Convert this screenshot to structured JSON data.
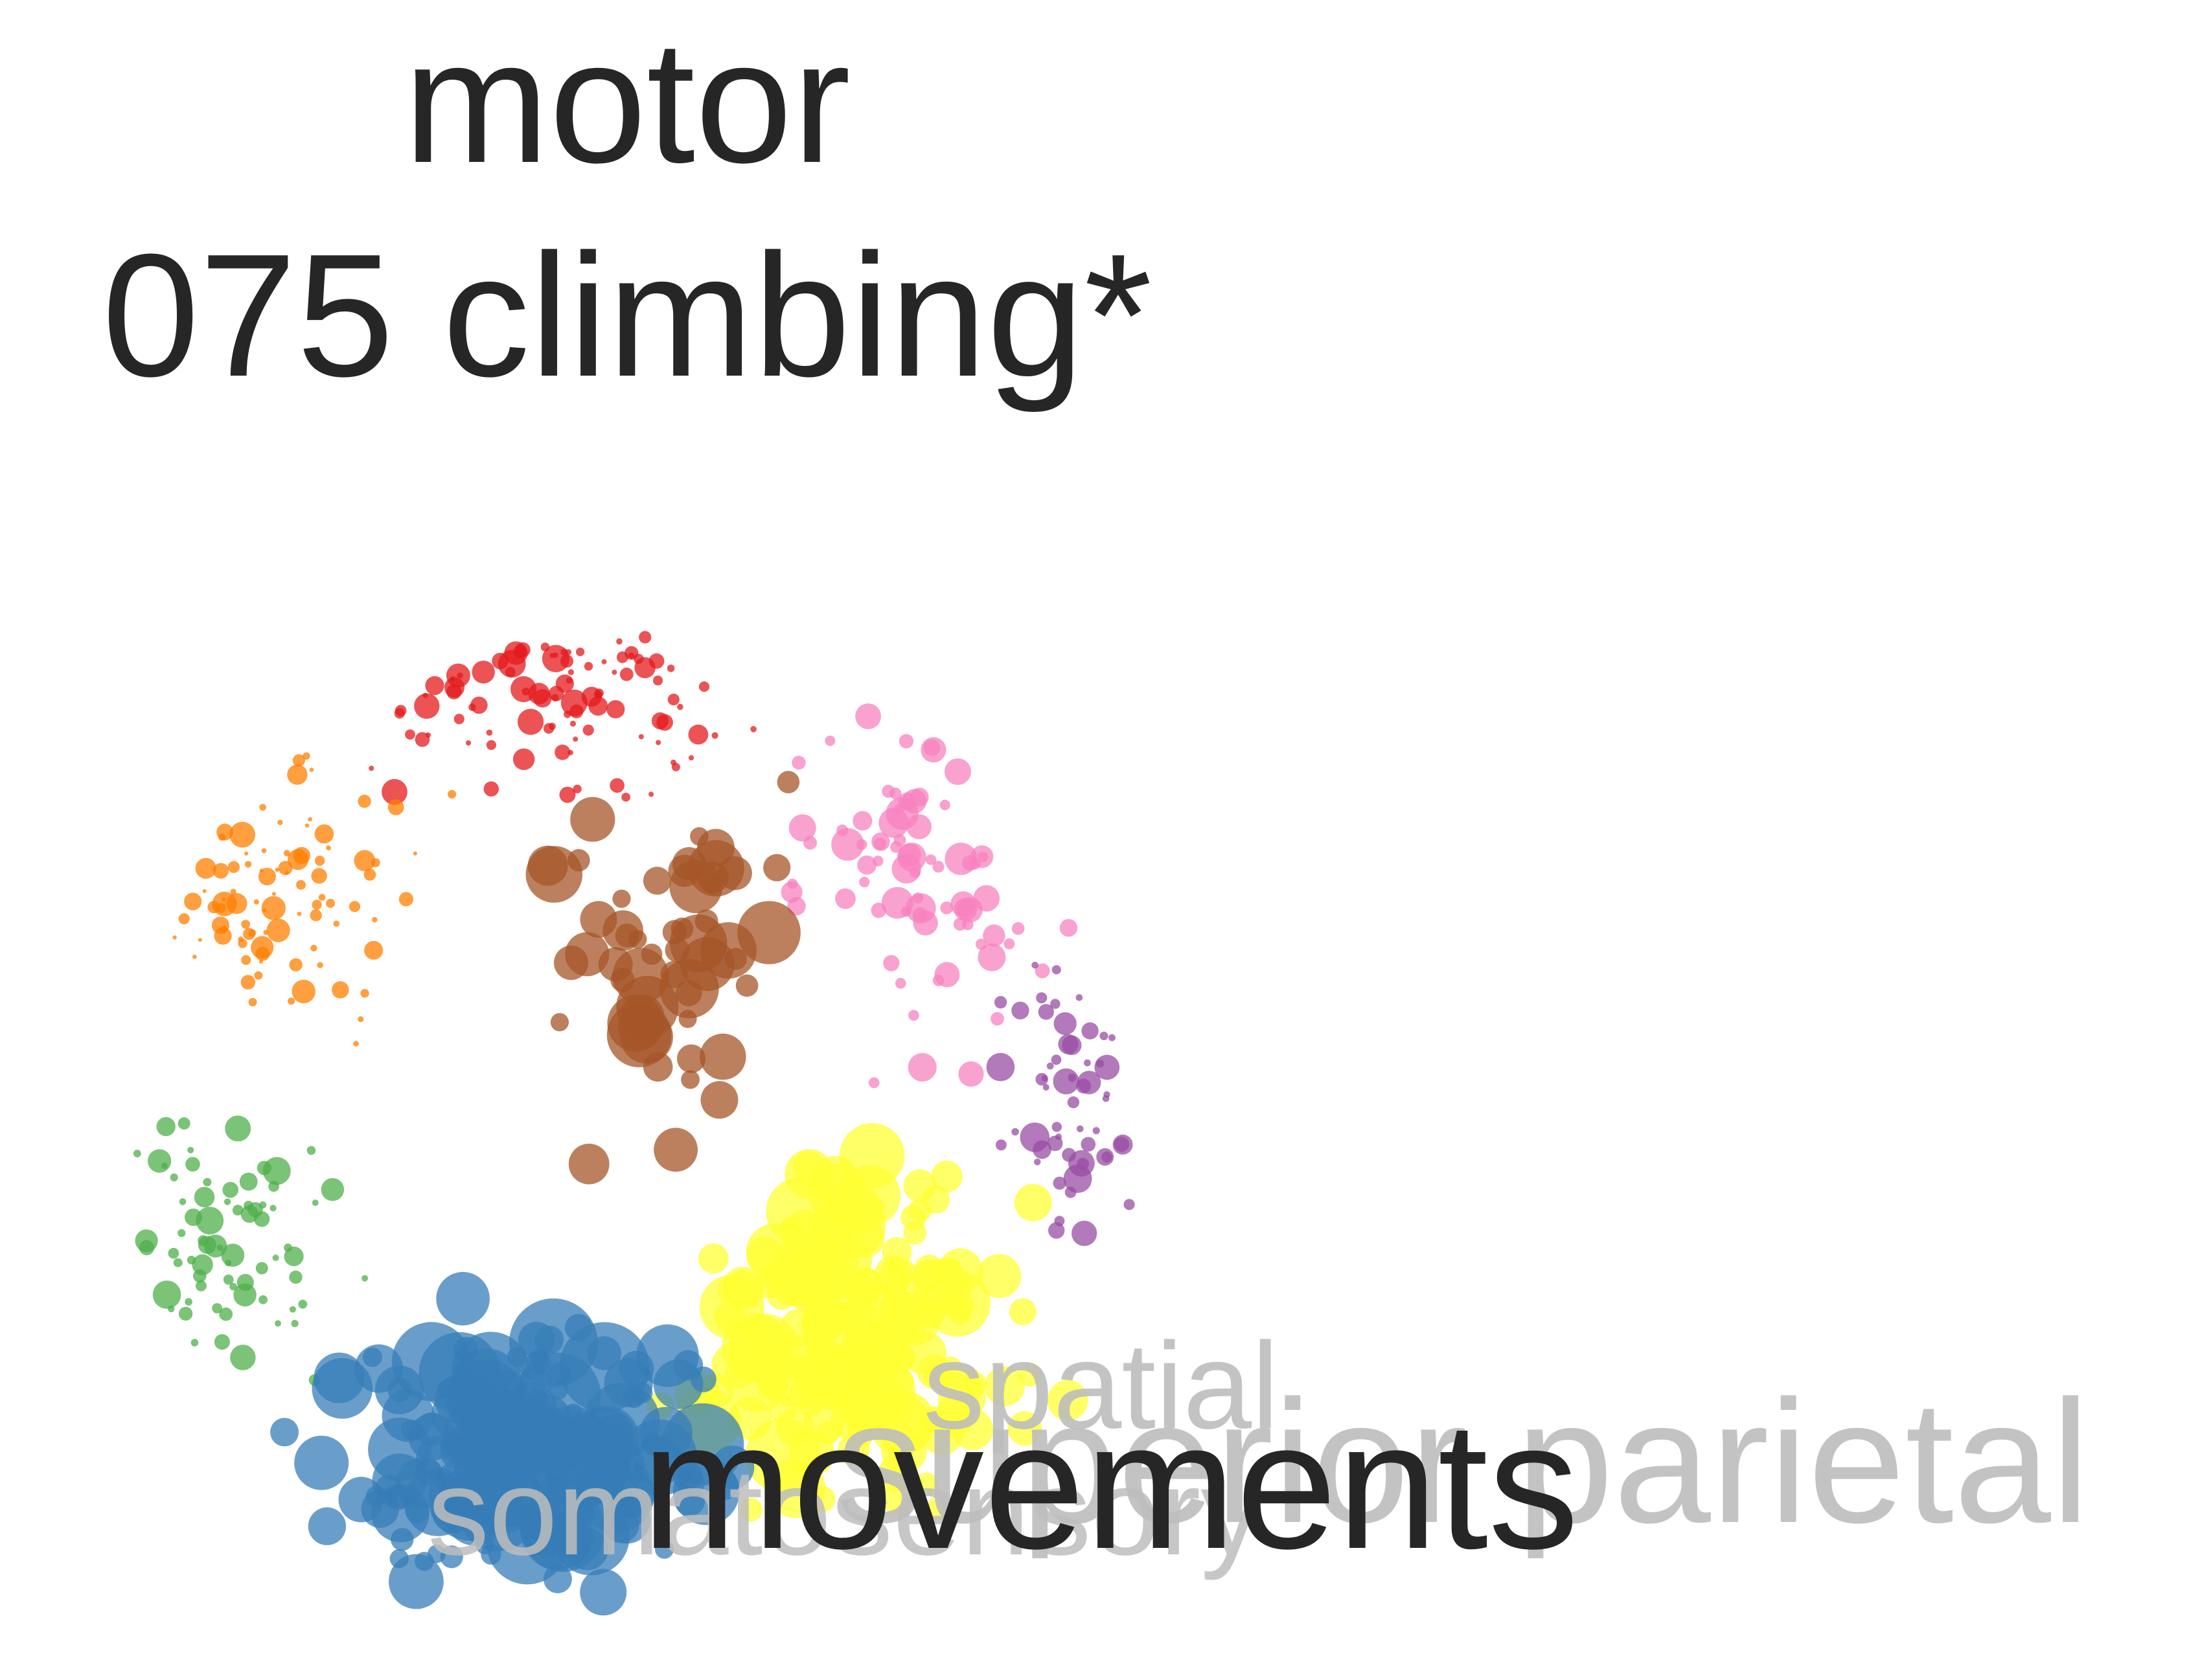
{
  "title": {
    "line1": "motor",
    "line2": "075 climbing*"
  },
  "terms": {
    "main": "movements",
    "background": [
      "superior parietal",
      "spatial",
      "somatosensory"
    ]
  },
  "colors": {
    "text_main": "#262626",
    "text_faded": "#c0c0c0",
    "red": "#e41a1c",
    "orange": "#ff7f00",
    "green": "#4daf4a",
    "blue": "#377eb8",
    "yellow": "#ffff33",
    "brown": "#a65628",
    "pink": "#f781bf",
    "purple": "#984ea3"
  },
  "clusters": [
    {
      "name": "red",
      "color": "#e41a1c",
      "count": 95
    },
    {
      "name": "pink",
      "color": "#f781bf",
      "count": 75
    },
    {
      "name": "purple",
      "color": "#984ea3",
      "count": 55
    },
    {
      "name": "orange",
      "color": "#ff7f00",
      "count": 90
    },
    {
      "name": "brown",
      "color": "#a65628",
      "count": 55
    },
    {
      "name": "green",
      "color": "#4daf4a",
      "count": 70
    },
    {
      "name": "yellow",
      "color": "#ffff33",
      "count": 160
    },
    {
      "name": "blue",
      "color": "#377eb8",
      "count": 190
    }
  ]
}
